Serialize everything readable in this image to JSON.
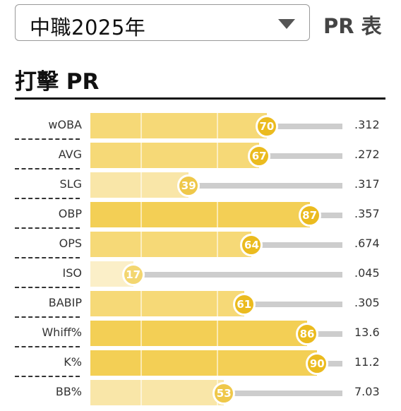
{
  "selector": {
    "value": "中職2025年"
  },
  "pr_table_label": "PR 表",
  "section_title": "打擊 PR",
  "rows": [
    {
      "label": "wOBA",
      "pr": 70,
      "value": ".312"
    },
    {
      "label": "AVG",
      "pr": 67,
      "value": ".272"
    },
    {
      "label": "SLG",
      "pr": 39,
      "value": ".317"
    },
    {
      "label": "OBP",
      "pr": 87,
      "value": ".357"
    },
    {
      "label": "OPS",
      "pr": 64,
      "value": ".674"
    },
    {
      "label": "ISO",
      "pr": 17,
      "value": ".045"
    },
    {
      "label": "BABIP",
      "pr": 61,
      "value": ".305"
    },
    {
      "label": "Whiff%",
      "pr": 86,
      "value": "13.6"
    },
    {
      "label": "K%",
      "pr": 90,
      "value": "11.2"
    },
    {
      "label": "BB%",
      "pr": 53,
      "value": "7.03"
    }
  ],
  "colors": {
    "bar_high": "#f3cf55",
    "bar_mid": "#f6d977",
    "bar_low": "#f9e6a8",
    "bar_very_low": "#fbefc8",
    "dot_high": "#ebbb1f",
    "dot_mid": "#efc84a",
    "dot_low": "#f3d670",
    "rest_track": "#cdcdcd"
  }
}
